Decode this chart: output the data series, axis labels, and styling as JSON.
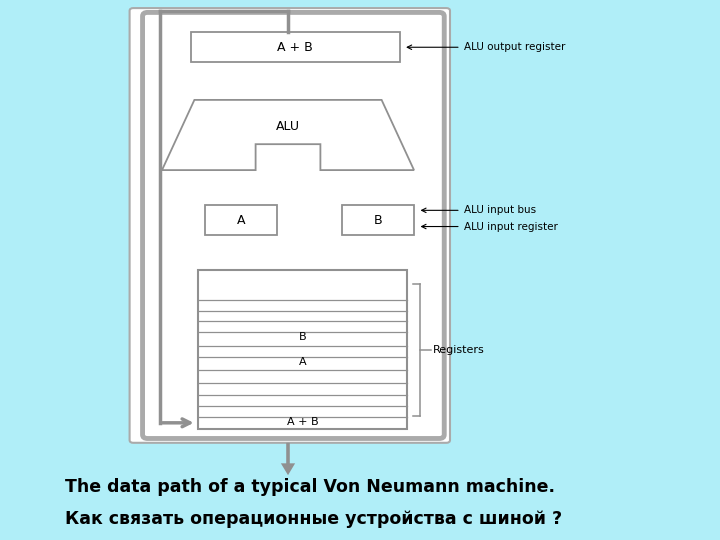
{
  "bg_color": "#b0eef8",
  "diagram_bg": "#ffffff",
  "title_line1": "Как связать операционные устройства с шиной ?",
  "title_line2": "The data path of a typical Von Neumann machine.",
  "line_color": "#909090",
  "text_color": "#000000",
  "label_registers": "Registers",
  "label_alu_input_reg": "ALU input register",
  "label_alu_input_bus": "ALU input bus",
  "label_alu_output_reg": "ALU output register",
  "label_A": "A",
  "label_B": "B",
  "label_ALU": "ALU",
  "label_AplusB_top": "A + B",
  "label_AplusB_bottom": "A + B",
  "figsize": [
    7.2,
    5.4
  ],
  "dpi": 100
}
